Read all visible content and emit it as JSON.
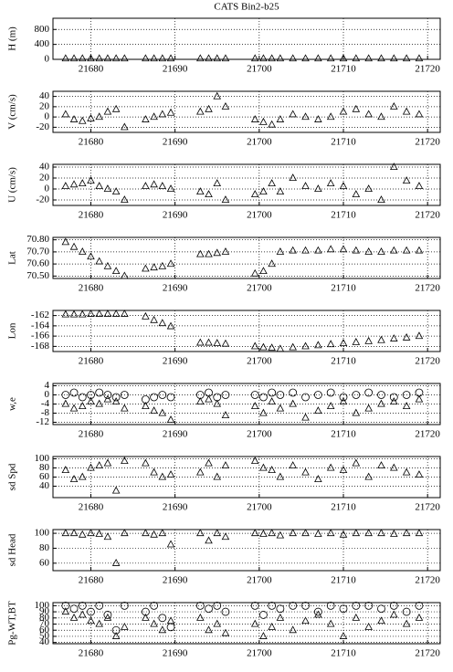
{
  "chart_data": [
    {
      "type": "scatter",
      "title": "CATS Bin2-b25",
      "y_label": "H (m)",
      "x": [
        21677,
        21678,
        21679,
        21680,
        21681,
        21682,
        21683,
        21684,
        21686.5,
        21687.5,
        21688.5,
        21689.5,
        21693,
        21694,
        21695,
        21696,
        21699.5,
        21700.5,
        21701.5,
        21702.5,
        21704,
        21705.5,
        21707,
        21708.5,
        21710,
        21711.5,
        21713,
        21714.5,
        21716,
        21717.5,
        21719
      ],
      "series": [
        {
          "marker": "triangle",
          "color": "#000000",
          "values": [
            20,
            20,
            20,
            20,
            20,
            20,
            20,
            20,
            20,
            20,
            20,
            20,
            20,
            20,
            20,
            20,
            20,
            20,
            20,
            20,
            20,
            20,
            20,
            20,
            20,
            20,
            20,
            20,
            20,
            20,
            20
          ]
        }
      ],
      "xlim": [
        21675.5,
        21721.5
      ],
      "xticks": [
        21680,
        21690,
        21700,
        21710,
        21720
      ],
      "ylim": [
        0,
        1100
      ],
      "yticks": [
        0,
        400,
        800
      ],
      "grid": true
    },
    {
      "type": "scatter",
      "y_label": "V (cm/s)",
      "x": [
        21677,
        21678,
        21679,
        21680,
        21681,
        21682,
        21683,
        21684,
        21686.5,
        21687.5,
        21688.5,
        21689.5,
        21693,
        21694,
        21695,
        21696,
        21699.5,
        21700.5,
        21701.5,
        21702.5,
        21704,
        21705.5,
        21707,
        21708.5,
        21710,
        21711.5,
        21713,
        21714.5,
        21716,
        21717.5,
        21719
      ],
      "series": [
        {
          "marker": "triangle",
          "color": "#000000",
          "values": [
            5,
            -5,
            -8,
            -3,
            0,
            10,
            15,
            -20,
            -5,
            0,
            5,
            8,
            10,
            15,
            40,
            20,
            -5,
            -10,
            -15,
            -5,
            5,
            0,
            -5,
            0,
            10,
            15,
            5,
            0,
            20,
            10,
            5
          ]
        }
      ],
      "xlim": [
        21675.5,
        21721.5
      ],
      "xticks": [
        21680,
        21690,
        21700,
        21710,
        21720
      ],
      "ylim": [
        -30,
        50
      ],
      "yticks": [
        -20,
        0,
        20,
        40
      ],
      "grid": true
    },
    {
      "type": "scatter",
      "y_label": "U (cm/s)",
      "x": [
        21677,
        21678,
        21679,
        21680,
        21681,
        21682,
        21683,
        21684,
        21686.5,
        21687.5,
        21688.5,
        21689.5,
        21693,
        21694,
        21695,
        21696,
        21699.5,
        21700.5,
        21701.5,
        21702.5,
        21704,
        21705.5,
        21707,
        21708.5,
        21710,
        21711.5,
        21713,
        21714.5,
        21716,
        21717.5,
        21719
      ],
      "series": [
        {
          "marker": "triangle",
          "color": "#000000",
          "values": [
            5,
            8,
            10,
            15,
            5,
            0,
            -5,
            -20,
            5,
            8,
            5,
            0,
            -5,
            -10,
            10,
            -20,
            -10,
            -5,
            10,
            -5,
            20,
            5,
            0,
            10,
            5,
            -10,
            0,
            -20,
            40,
            15,
            5
          ]
        }
      ],
      "xlim": [
        21675.5,
        21721.5
      ],
      "xticks": [
        21680,
        21690,
        21700,
        21710,
        21720
      ],
      "ylim": [
        -30,
        45
      ],
      "yticks": [
        -20,
        0,
        20,
        40
      ],
      "grid": true
    },
    {
      "type": "scatter",
      "y_label": "Lat",
      "x": [
        21677,
        21678,
        21679,
        21680,
        21681,
        21682,
        21683,
        21684,
        21686.5,
        21687.5,
        21688.5,
        21689.5,
        21693,
        21694,
        21695,
        21696,
        21699.5,
        21700.5,
        21701.5,
        21702.5,
        21704,
        21705.5,
        21707,
        21708.5,
        21710,
        21711.5,
        21713,
        21714.5,
        21716,
        21717.5,
        21719
      ],
      "series": [
        {
          "marker": "triangle",
          "color": "#000000",
          "values": [
            70.78,
            70.74,
            70.7,
            70.66,
            70.62,
            70.58,
            70.54,
            70.5,
            70.56,
            70.57,
            70.58,
            70.6,
            70.68,
            70.68,
            70.69,
            70.7,
            70.52,
            70.54,
            70.6,
            70.7,
            70.71,
            70.71,
            70.71,
            70.72,
            70.72,
            70.71,
            70.7,
            70.7,
            70.71,
            70.71,
            70.71
          ]
        }
      ],
      "xlim": [
        21675.5,
        21721.5
      ],
      "xticks": [
        21680,
        21690,
        21700,
        21710,
        21720
      ],
      "ylim": [
        70.48,
        70.82
      ],
      "yticks": [
        {
          "value": 70.5,
          "label": "70.50"
        },
        {
          "value": 70.6,
          "label": "70.60"
        },
        {
          "value": 70.7,
          "label": "70.70"
        },
        {
          "value": 70.8,
          "label": "70.80"
        }
      ],
      "grid": true
    },
    {
      "type": "scatter",
      "y_label": "Lon",
      "x": [
        21677,
        21678,
        21679,
        21680,
        21681,
        21682,
        21683,
        21684,
        21686.5,
        21687.5,
        21688.5,
        21689.5,
        21693,
        21694,
        21695,
        21696,
        21699.5,
        21700.5,
        21701.5,
        21702.5,
        21704,
        21705.5,
        21707,
        21708.5,
        21710,
        21711.5,
        21713,
        21714.5,
        21716,
        21717.5,
        21719
      ],
      "series": [
        {
          "marker": "triangle",
          "color": "#000000",
          "values": [
            -161.8,
            -161.8,
            -161.8,
            -161.7,
            -161.7,
            -161.7,
            -161.7,
            -161.7,
            -162.2,
            -162.9,
            -163.5,
            -164.1,
            -167.3,
            -167.3,
            -167.4,
            -167.5,
            -168.0,
            -168.2,
            -168.3,
            -168.5,
            -168.2,
            -168.0,
            -167.8,
            -167.6,
            -167.4,
            -167.2,
            -167.0,
            -166.8,
            -166.5,
            -166.3,
            -166.0
          ]
        }
      ],
      "xlim": [
        21675.5,
        21721.5
      ],
      "xticks": [
        21680,
        21690,
        21700,
        21710,
        21720
      ],
      "ylim": [
        -169,
        -161
      ],
      "yticks": [
        -168,
        -166,
        -164,
        -162
      ],
      "grid": true
    },
    {
      "type": "scatter",
      "y_label": "w,e",
      "x": [
        21677,
        21678,
        21679,
        21680,
        21681,
        21682,
        21683,
        21684,
        21686.5,
        21687.5,
        21688.5,
        21689.5,
        21693,
        21694,
        21695,
        21696,
        21699.5,
        21700.5,
        21701.5,
        21702.5,
        21704,
        21705.5,
        21707,
        21708.5,
        21710,
        21711.5,
        21713,
        21714.5,
        21716,
        21717.5,
        21719
      ],
      "series": [
        {
          "marker": "circle",
          "color": "#000000",
          "values": [
            0,
            1,
            -1,
            0,
            1,
            0,
            -1,
            0,
            -2,
            -1,
            0,
            -1,
            0,
            1,
            -1,
            0,
            0,
            -1,
            1,
            0,
            1,
            -1,
            0,
            1,
            -1,
            0,
            1,
            0,
            -1,
            0,
            1
          ]
        },
        {
          "marker": "triangle",
          "color": "#000000",
          "values": [
            -4,
            -6,
            -5,
            -3,
            -4,
            -2,
            -3,
            -6,
            -5,
            -7,
            -8,
            -11,
            -3,
            -2,
            -4,
            -9,
            -5,
            -8,
            -3,
            -6,
            -4,
            -10,
            -7,
            -5,
            -3,
            -8,
            -6,
            -4,
            -3,
            -5,
            -2
          ]
        }
      ],
      "xlim": [
        21675.5,
        21721.5
      ],
      "xticks": [
        21680,
        21690,
        21700,
        21710,
        21720
      ],
      "ylim": [
        -13,
        5
      ],
      "yticks": [
        -12,
        -8,
        -4,
        0,
        4
      ],
      "grid": true
    },
    {
      "type": "scatter",
      "y_label": "sd Spd",
      "x": [
        21677,
        21678,
        21679,
        21680,
        21681,
        21682,
        21683,
        21684,
        21686.5,
        21687.5,
        21688.5,
        21689.5,
        21693,
        21694,
        21695,
        21696,
        21699.5,
        21700.5,
        21701.5,
        21702.5,
        21704,
        21705.5,
        21707,
        21708.5,
        21710,
        21711.5,
        21713,
        21714.5,
        21716,
        21717.5,
        21719
      ],
      "series": [
        {
          "marker": "triangle",
          "color": "#000000",
          "values": [
            75,
            55,
            60,
            80,
            85,
            90,
            30,
            95,
            90,
            70,
            60,
            65,
            70,
            90,
            60,
            85,
            95,
            80,
            75,
            60,
            85,
            70,
            55,
            80,
            75,
            90,
            60,
            85,
            80,
            70,
            65
          ]
        }
      ],
      "xlim": [
        21675.5,
        21721.5
      ],
      "xticks": [
        21680,
        21690,
        21700,
        21710,
        21720
      ],
      "ylim": [
        15,
        105
      ],
      "yticks": [
        40,
        60,
        80,
        100
      ],
      "grid": true
    },
    {
      "type": "scatter",
      "y_label": "sd Head",
      "x": [
        21677,
        21678,
        21679,
        21680,
        21681,
        21682,
        21683,
        21684,
        21686.5,
        21687.5,
        21688.5,
        21689.5,
        21693,
        21694,
        21695,
        21696,
        21699.5,
        21700.5,
        21701.5,
        21702.5,
        21704,
        21705.5,
        21707,
        21708.5,
        21710,
        21711.5,
        21713,
        21714.5,
        21716,
        21717.5,
        21719
      ],
      "series": [
        {
          "marker": "triangle",
          "color": "#000000",
          "values": [
            100,
            100,
            98,
            100,
            99,
            95,
            60,
            100,
            100,
            98,
            100,
            85,
            100,
            90,
            100,
            95,
            100,
            99,
            100,
            97,
            100,
            100,
            99,
            100,
            98,
            100,
            100,
            100,
            99,
            100,
            100
          ]
        }
      ],
      "xlim": [
        21675.5,
        21721.5
      ],
      "xticks": [
        21680,
        21690,
        21700,
        21710,
        21720
      ],
      "ylim": [
        50,
        105
      ],
      "yticks": [
        60,
        80,
        100
      ],
      "grid": true
    },
    {
      "type": "scatter",
      "y_label": "Pg-WT,BT",
      "x": [
        21677,
        21678,
        21679,
        21680,
        21681,
        21682,
        21683,
        21684,
        21686.5,
        21687.5,
        21688.5,
        21689.5,
        21693,
        21694,
        21695,
        21696,
        21699.5,
        21700.5,
        21701.5,
        21702.5,
        21704,
        21705.5,
        21707,
        21708.5,
        21710,
        21711.5,
        21713,
        21714.5,
        21716,
        21717.5,
        21719
      ],
      "series": [
        {
          "marker": "circle",
          "color": "#000000",
          "values": [
            100,
            95,
            100,
            90,
            100,
            85,
            60,
            100,
            90,
            100,
            80,
            65,
            100,
            95,
            100,
            90,
            100,
            85,
            100,
            95,
            100,
            100,
            90,
            100,
            95,
            100,
            100,
            95,
            100,
            90,
            100
          ]
        },
        {
          "marker": "triangle",
          "color": "#000000",
          "values": [
            90,
            80,
            85,
            75,
            70,
            80,
            50,
            65,
            80,
            70,
            60,
            75,
            80,
            60,
            70,
            55,
            70,
            50,
            65,
            80,
            60,
            75,
            85,
            70,
            50,
            80,
            65,
            75,
            85,
            70,
            80
          ]
        }
      ],
      "xlim": [
        21675.5,
        21721.5
      ],
      "xticks": [
        21680,
        21690,
        21700,
        21710,
        21720
      ],
      "ylim": [
        38,
        105
      ],
      "yticks": [
        40,
        50,
        60,
        70,
        80,
        90,
        100
      ],
      "grid": true
    }
  ]
}
